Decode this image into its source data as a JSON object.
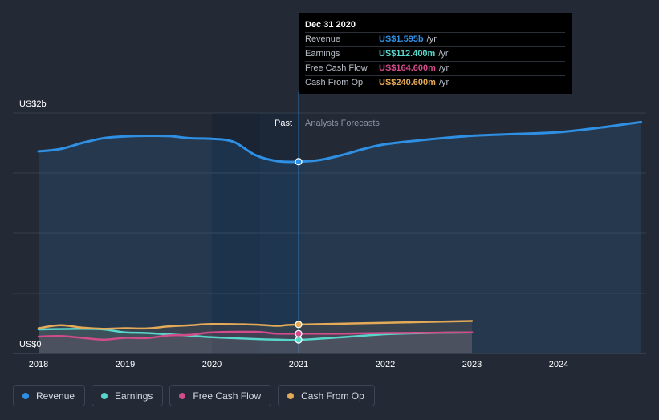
{
  "chart_data": {
    "type": "line",
    "x_axis": {
      "ticks": [
        "2018",
        "2019",
        "2020",
        "2021",
        "2022",
        "2023",
        "2024"
      ]
    },
    "y_axis": {
      "top_label": "US$2b",
      "bottom_label": "US$0",
      "ylim": [
        0,
        2000
      ]
    },
    "regions": {
      "past_label": "Past",
      "forecast_label": "Analysts Forecasts"
    },
    "series": [
      {
        "name": "Revenue",
        "color": "#2f8fe3",
        "points": [
          [
            2018.0,
            1680
          ],
          [
            2018.25,
            1700
          ],
          [
            2018.5,
            1750
          ],
          [
            2018.75,
            1790
          ],
          [
            2019.0,
            1805
          ],
          [
            2019.25,
            1810
          ],
          [
            2019.5,
            1808
          ],
          [
            2019.75,
            1790
          ],
          [
            2020.0,
            1785
          ],
          [
            2020.25,
            1760
          ],
          [
            2020.5,
            1650
          ],
          [
            2020.75,
            1600
          ],
          [
            2021.0,
            1595
          ],
          [
            2021.25,
            1610
          ],
          [
            2021.5,
            1650
          ],
          [
            2021.75,
            1700
          ],
          [
            2022.0,
            1740
          ],
          [
            2022.5,
            1780
          ],
          [
            2023.0,
            1810
          ],
          [
            2023.5,
            1825
          ],
          [
            2024.0,
            1840
          ],
          [
            2024.5,
            1880
          ],
          [
            2024.95,
            1925
          ]
        ]
      },
      {
        "name": "Earnings",
        "color": "#58d6cc",
        "points": [
          [
            2018.0,
            200
          ],
          [
            2018.5,
            205
          ],
          [
            2018.75,
            200
          ],
          [
            2019.0,
            175
          ],
          [
            2019.25,
            170
          ],
          [
            2019.75,
            148
          ],
          [
            2020.0,
            135
          ],
          [
            2020.5,
            120
          ],
          [
            2020.75,
            115
          ],
          [
            2021.0,
            112.4
          ],
          [
            2021.5,
            135
          ],
          [
            2022.0,
            160
          ],
          [
            2022.5,
            170
          ],
          [
            2023.0,
            175
          ]
        ]
      },
      {
        "name": "Free Cash Flow",
        "color": "#d04c8a",
        "points": [
          [
            2018.0,
            140
          ],
          [
            2018.25,
            145
          ],
          [
            2018.5,
            130
          ],
          [
            2018.75,
            115
          ],
          [
            2019.0,
            130
          ],
          [
            2019.25,
            128
          ],
          [
            2019.5,
            150
          ],
          [
            2019.75,
            155
          ],
          [
            2020.0,
            175
          ],
          [
            2020.5,
            180
          ],
          [
            2020.75,
            165
          ],
          [
            2021.0,
            164.6
          ],
          [
            2021.5,
            165
          ],
          [
            2022.0,
            170
          ],
          [
            2022.5,
            172
          ],
          [
            2023.0,
            175
          ]
        ]
      },
      {
        "name": "Cash From Op",
        "color": "#e4aa58",
        "points": [
          [
            2018.0,
            210
          ],
          [
            2018.25,
            235
          ],
          [
            2018.5,
            215
          ],
          [
            2018.75,
            205
          ],
          [
            2019.0,
            210
          ],
          [
            2019.25,
            208
          ],
          [
            2019.5,
            225
          ],
          [
            2019.75,
            235
          ],
          [
            2020.0,
            245
          ],
          [
            2020.5,
            240
          ],
          [
            2020.75,
            230
          ],
          [
            2021.0,
            240.6
          ],
          [
            2022.0,
            255
          ],
          [
            2023.0,
            270
          ]
        ]
      }
    ],
    "highlight": {
      "x": 2021.0
    }
  },
  "tooltip": {
    "date": "Dec 31 2020",
    "rows": [
      {
        "name": "Revenue",
        "value": "US$1.595b",
        "unit": "/yr",
        "color": "#2f8fe3"
      },
      {
        "name": "Earnings",
        "value": "US$112.400m",
        "unit": "/yr",
        "color": "#58d6cc"
      },
      {
        "name": "Free Cash Flow",
        "value": "US$164.600m",
        "unit": "/yr",
        "color": "#d04c8a"
      },
      {
        "name": "Cash From Op",
        "value": "US$240.600m",
        "unit": "/yr",
        "color": "#e4aa58"
      }
    ]
  },
  "legend": [
    {
      "label": "Revenue",
      "color": "#2f8fe3"
    },
    {
      "label": "Earnings",
      "color": "#58d6cc"
    },
    {
      "label": "Free Cash Flow",
      "color": "#d04c8a"
    },
    {
      "label": "Cash From Op",
      "color": "#e4aa58"
    }
  ]
}
